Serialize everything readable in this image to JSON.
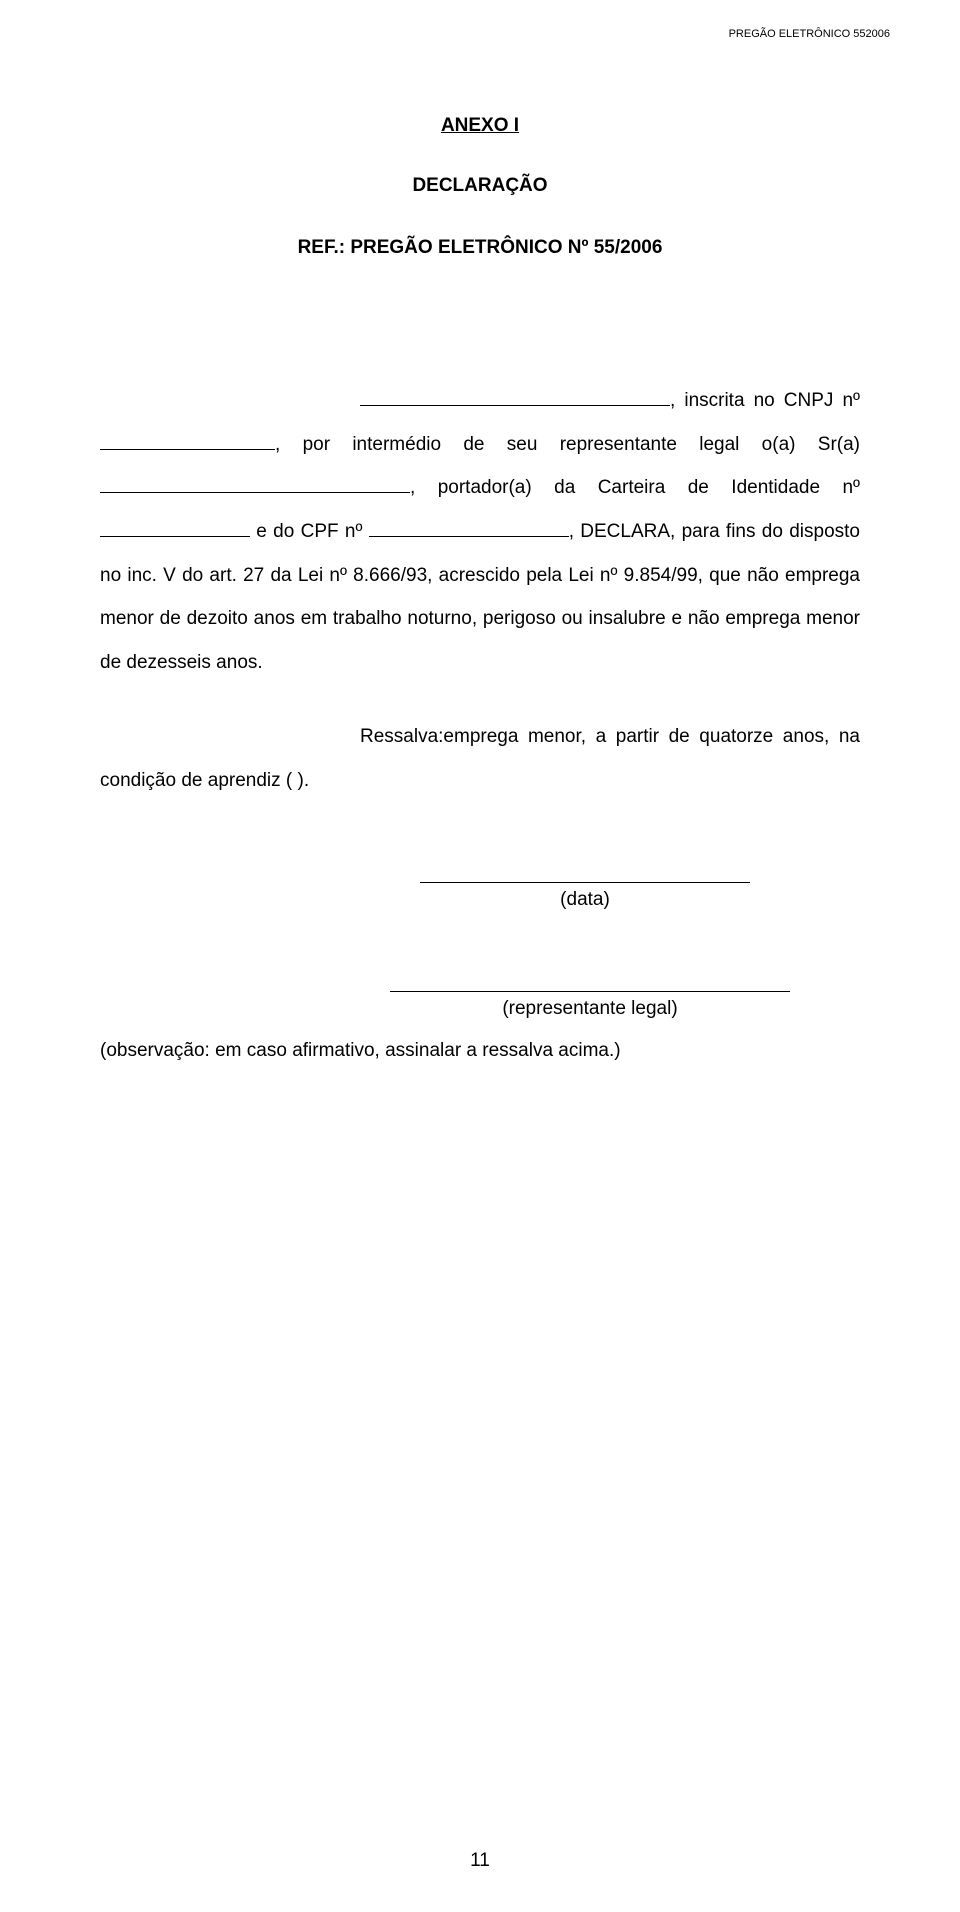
{
  "header": {
    "right_text": "PREGÃO ELETRÔNICO 552006"
  },
  "title": "ANEXO I",
  "subtitle": "DECLARAÇÃO",
  "ref": "REF.: PREGÃO ELETRÔNICO Nº 55/2006",
  "body": {
    "t1": ", inscrita no CNPJ nº",
    "t2": ", por intermédio de seu representante legal o(a) Sr(a)",
    "t3": ", portador(a) da Carteira de Identidade nº",
    "t4": " e do CPF nº ",
    "t5": ", DECLARA, para fins do disposto no inc. V do art. 27 da Lei nº 8.666/93, acrescido pela Lei nº 9.854/99, que não emprega menor de dezoito anos em trabalho noturno, perigoso ou insalubre e não emprega menor de dezesseis anos."
  },
  "ressalva": {
    "t1": "Ressalva:emprega menor, a partir de quatorze anos, na condição de aprendiz ( )."
  },
  "sig": {
    "data": "(data)",
    "rep": "(representante legal)"
  },
  "obs": "(observação: em caso afirmativo, assinalar a ressalva acima.)",
  "page_number": "11"
}
